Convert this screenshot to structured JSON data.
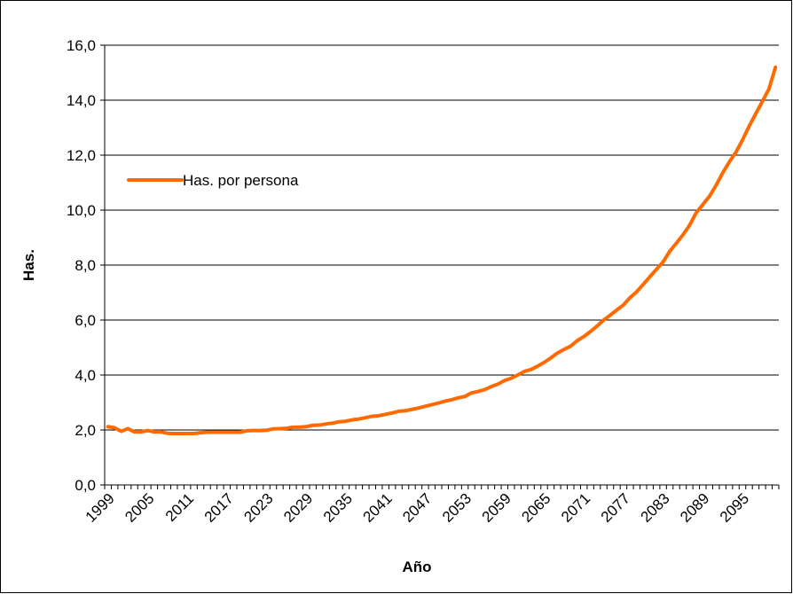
{
  "chart_data": {
    "type": "line",
    "x_label": "Año",
    "y_label": "Has.",
    "categories": [
      "1999",
      null,
      null,
      null,
      null,
      null,
      "2005",
      null,
      null,
      null,
      null,
      null,
      "2011",
      null,
      null,
      null,
      null,
      null,
      "2017",
      null,
      null,
      null,
      null,
      null,
      "2023",
      null,
      null,
      null,
      null,
      null,
      "2029",
      null,
      null,
      null,
      null,
      null,
      "2035",
      null,
      null,
      null,
      null,
      null,
      "2041",
      null,
      null,
      null,
      null,
      null,
      "2047",
      null,
      null,
      null,
      null,
      null,
      "2053",
      null,
      null,
      null,
      null,
      null,
      "2059",
      null,
      null,
      null,
      null,
      null,
      "2065",
      null,
      null,
      null,
      null,
      null,
      "2071",
      null,
      null,
      null,
      null,
      null,
      "2077",
      null,
      null,
      null,
      null,
      null,
      "2083",
      null,
      null,
      null,
      null,
      null,
      "2089",
      null,
      null,
      null,
      null,
      null,
      "2095",
      null,
      null,
      null,
      null,
      null
    ],
    "series": [
      {
        "name": "Has. por persona",
        "color": "#ff6a00",
        "values": [
          2.12,
          2.08,
          1.95,
          2.05,
          1.93,
          1.93,
          1.98,
          1.93,
          1.93,
          1.88,
          1.87,
          1.87,
          1.87,
          1.87,
          1.9,
          1.92,
          1.92,
          1.92,
          1.92,
          1.92,
          1.92,
          1.97,
          1.98,
          1.98,
          1.99,
          2.04,
          2.05,
          2.06,
          2.1,
          2.1,
          2.12,
          2.17,
          2.18,
          2.22,
          2.25,
          2.3,
          2.32,
          2.37,
          2.4,
          2.45,
          2.5,
          2.52,
          2.57,
          2.62,
          2.68,
          2.7,
          2.75,
          2.8,
          2.86,
          2.92,
          2.98,
          3.05,
          3.1,
          3.17,
          3.22,
          3.35,
          3.4,
          3.47,
          3.58,
          3.67,
          3.8,
          3.88,
          4.0,
          4.13,
          4.2,
          4.32,
          4.46,
          4.62,
          4.8,
          4.93,
          5.05,
          5.25,
          5.4,
          5.58,
          5.78,
          6.0,
          6.18,
          6.37,
          6.55,
          6.82,
          7.03,
          7.3,
          7.58,
          7.85,
          8.12,
          8.5,
          8.8,
          9.1,
          9.45,
          9.9,
          10.2,
          10.5,
          10.9,
          11.35,
          11.75,
          12.1,
          12.55,
          13.05,
          13.5,
          13.95,
          14.4,
          15.2
        ]
      }
    ],
    "ylim": [
      0,
      16
    ],
    "yticks": [
      {
        "value": 0,
        "label": "0,0"
      },
      {
        "value": 2,
        "label": "2,0"
      },
      {
        "value": 4,
        "label": "4,0"
      },
      {
        "value": 6,
        "label": "6,0"
      },
      {
        "value": 8,
        "label": "8,0"
      },
      {
        "value": 10,
        "label": "10,0"
      },
      {
        "value": 12,
        "label": "12,0"
      },
      {
        "value": 14,
        "label": "14,0"
      },
      {
        "value": 16,
        "label": "16,0"
      }
    ],
    "grid": true,
    "legend": "upper left"
  }
}
